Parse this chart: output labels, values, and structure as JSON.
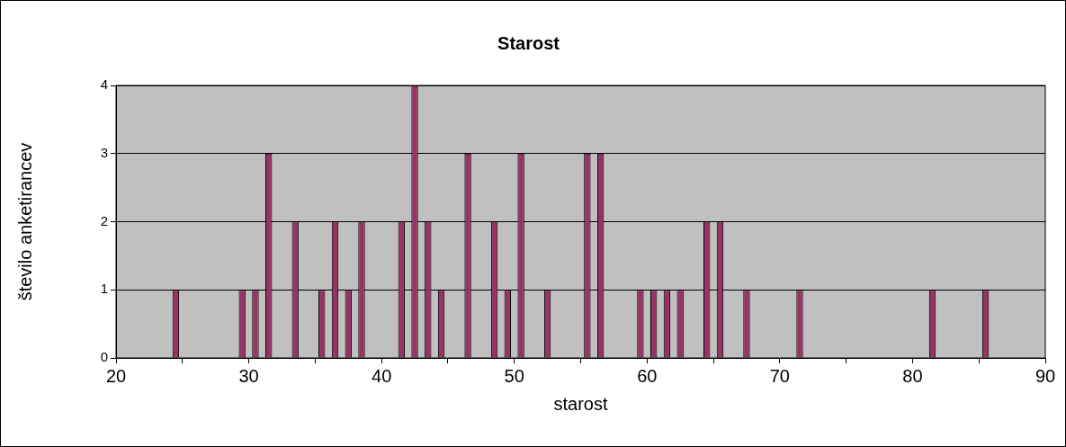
{
  "chart_data": {
    "type": "bar",
    "title": "Starost",
    "xlabel": "starost",
    "ylabel": "število anketirancev",
    "x": [
      24.5,
      29.5,
      30.5,
      31.5,
      33.5,
      35.5,
      36.5,
      37.5,
      38.5,
      41.5,
      42.5,
      43.5,
      44.5,
      46.5,
      48.5,
      49.5,
      50.5,
      52.5,
      55.5,
      56.5,
      59.5,
      60.5,
      61.5,
      62.5,
      64.5,
      65.5,
      67.5,
      71.5,
      81.5,
      85.5
    ],
    "values": [
      1,
      1,
      1,
      3,
      2,
      1,
      2,
      1,
      2,
      2,
      4,
      2,
      1,
      3,
      2,
      1,
      3,
      1,
      3,
      3,
      1,
      1,
      1,
      1,
      2,
      2,
      1,
      1,
      1,
      1
    ],
    "color": "#993366",
    "xlim": [
      20,
      90
    ],
    "xticks": [
      20,
      {
        "value": 25,
        "label": null
      },
      30,
      {
        "value": 35,
        "label": null
      },
      40,
      {
        "value": 45,
        "label": null
      },
      50,
      {
        "value": 55,
        "label": null
      },
      60,
      {
        "value": 65,
        "label": null
      },
      70,
      {
        "value": 75,
        "label": null
      },
      80,
      {
        "value": 85,
        "label": null
      },
      90
    ],
    "ylim": [
      0,
      4
    ],
    "yticks": [
      0,
      1,
      2,
      3,
      4
    ],
    "grid": "y"
  }
}
